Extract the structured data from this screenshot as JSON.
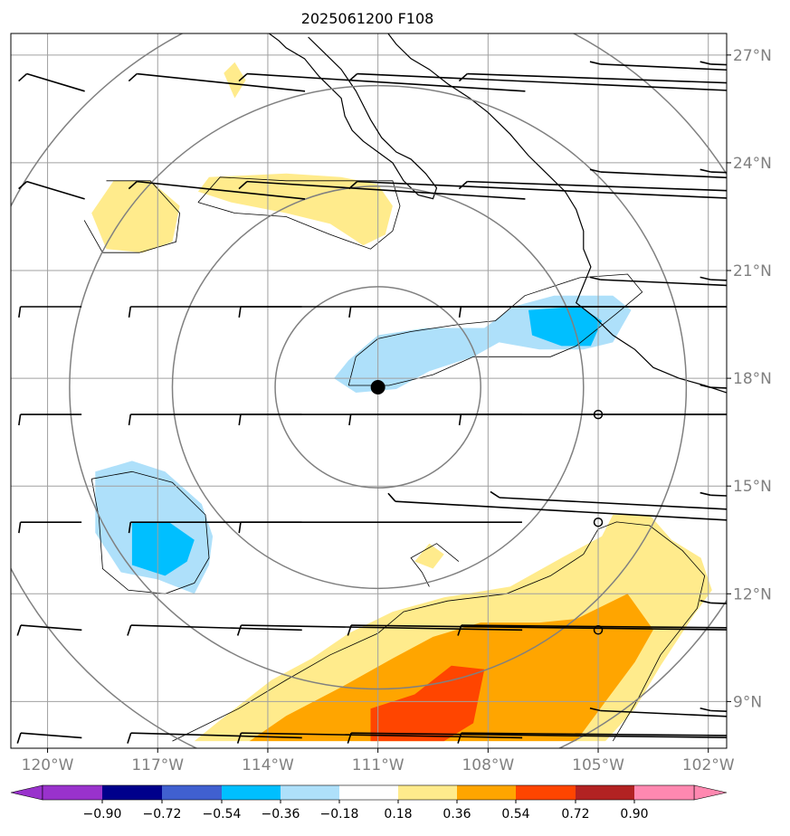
{
  "chart_data": {
    "type": "heatmap",
    "title": "2025061200 F108",
    "projection": "geographic map with lat/lon grid, coastlines, wind barbs",
    "lon_range": [
      -121,
      -101.5
    ],
    "lat_range": [
      7.7,
      27.6
    ],
    "lat_ticks": [
      {
        "value": 27,
        "label": "27°N"
      },
      {
        "value": 24,
        "label": "24°N"
      },
      {
        "value": 21,
        "label": "21°N"
      },
      {
        "value": 18,
        "label": "18°N"
      },
      {
        "value": 15,
        "label": "15°N"
      },
      {
        "value": 12,
        "label": "12°N"
      },
      {
        "value": 9,
        "label": "9°N"
      }
    ],
    "lon_ticks": [
      {
        "value": -120,
        "label": "120°W"
      },
      {
        "value": -117,
        "label": "117°W"
      },
      {
        "value": -114,
        "label": "114°W"
      },
      {
        "value": -111,
        "label": "111°W"
      },
      {
        "value": -108,
        "label": "108°W"
      },
      {
        "value": -105,
        "label": "105°W"
      },
      {
        "value": -102,
        "label": "102°W"
      }
    ],
    "grid": true,
    "center_marker": {
      "lon": -111.0,
      "lat": 17.75
    },
    "range_rings_deg": [
      2.8,
      5.6,
      8.4,
      11.2
    ],
    "colorbar": {
      "position": "bottom",
      "extend": "both",
      "tick_labels": [
        "−0.90",
        "−0.72",
        "−0.54",
        "−0.36",
        "−0.18",
        "0.18",
        "0.36",
        "0.54",
        "0.72",
        "0.90"
      ],
      "levels": [
        -0.9,
        -0.72,
        -0.54,
        -0.36,
        -0.18,
        0.18,
        0.36,
        0.54,
        0.72,
        0.9
      ],
      "colors": [
        "#9932cc",
        "#00008b",
        "#4060d0",
        "#00bfff",
        "#aee0fa",
        "#ffffff",
        "#ffeb8c",
        "#ffa500",
        "#ff4500",
        "#b22222",
        "#ff88b0"
      ]
    },
    "filled_regions": [
      {
        "level": 0.18,
        "color": "#ffeb8c",
        "polygon": [
          [
            -118.2,
            23.5
          ],
          [
            -117.2,
            23.5
          ],
          [
            -116.4,
            22.8
          ],
          [
            -116.6,
            21.8
          ],
          [
            -117.4,
            21.5
          ],
          [
            -118.4,
            21.6
          ],
          [
            -118.8,
            22.6
          ]
        ]
      },
      {
        "level": 0.18,
        "color": "#ffeb8c",
        "polygon": [
          [
            -115.6,
            23.6
          ],
          [
            -113.5,
            23.7
          ],
          [
            -112,
            23.6
          ],
          [
            -111,
            23.4
          ],
          [
            -110.6,
            22.8
          ],
          [
            -110.8,
            22.0
          ],
          [
            -111.4,
            21.7
          ],
          [
            -112.3,
            22.3
          ],
          [
            -113.5,
            22.6
          ],
          [
            -115,
            22.9
          ],
          [
            -115.9,
            23.2
          ]
        ]
      },
      {
        "level": 0.18,
        "color": "#ffeb8c",
        "polygon": [
          [
            -115.2,
            26.5
          ],
          [
            -114.9,
            25.8
          ],
          [
            -114.6,
            26.3
          ],
          [
            -114.9,
            26.8
          ]
        ]
      },
      {
        "level": 0.18,
        "color": "#ffeb8c",
        "polygon": [
          [
            -109.6,
            13.4
          ],
          [
            -109.2,
            13.1
          ],
          [
            -109.5,
            12.7
          ],
          [
            -110.0,
            12.9
          ]
        ]
      },
      {
        "level": 0.18,
        "color": "#ffeb8c",
        "polygon": [
          [
            -116.0,
            7.9
          ],
          [
            -115.4,
            8.4
          ],
          [
            -113.9,
            9.6
          ],
          [
            -112.8,
            10.2
          ],
          [
            -111.8,
            10.9
          ],
          [
            -110.6,
            11.5
          ],
          [
            -109.2,
            11.9
          ],
          [
            -107.4,
            12.2
          ],
          [
            -106.0,
            13.0
          ],
          [
            -104.9,
            13.6
          ],
          [
            -104.6,
            14.2
          ],
          [
            -103.6,
            14.2
          ],
          [
            -103.0,
            13.5
          ],
          [
            -102.2,
            13.0
          ],
          [
            -101.9,
            12.1
          ],
          [
            -102.4,
            11.4
          ],
          [
            -103.3,
            10.0
          ],
          [
            -104.0,
            8.8
          ],
          [
            -104.8,
            7.9
          ]
        ]
      },
      {
        "level": 0.36,
        "color": "#ffa500",
        "polygon": [
          [
            -114.5,
            7.9
          ],
          [
            -113.5,
            8.6
          ],
          [
            -112.0,
            9.4
          ],
          [
            -110.6,
            10.2
          ],
          [
            -109.5,
            10.8
          ],
          [
            -108.2,
            11.2
          ],
          [
            -106.6,
            11.2
          ],
          [
            -105.6,
            11.3
          ],
          [
            -104.2,
            12.0
          ],
          [
            -103.5,
            11.0
          ],
          [
            -104.0,
            10.1
          ],
          [
            -104.8,
            9.0
          ],
          [
            -105.6,
            7.9
          ]
        ]
      },
      {
        "level": 0.54,
        "color": "#ff4500",
        "polygon": [
          [
            -111.2,
            7.9
          ],
          [
            -111.2,
            8.8
          ],
          [
            -110.0,
            9.2
          ],
          [
            -109.0,
            10.0
          ],
          [
            -108.1,
            9.9
          ],
          [
            -108.4,
            8.4
          ],
          [
            -109.2,
            7.9
          ]
        ]
      },
      {
        "level": -0.18,
        "color": "#aee0fa",
        "polygon": [
          [
            -111.8,
            18.5
          ],
          [
            -111.0,
            19.2
          ],
          [
            -109.7,
            19.4
          ],
          [
            -108.1,
            19.4
          ],
          [
            -107.3,
            20.0
          ],
          [
            -106.2,
            20.3
          ],
          [
            -104.6,
            20.3
          ],
          [
            -104.1,
            19.9
          ],
          [
            -104.6,
            19.0
          ],
          [
            -105.4,
            18.8
          ],
          [
            -106.6,
            18.8
          ],
          [
            -107.7,
            19.0
          ],
          [
            -108.4,
            18.6
          ],
          [
            -109.6,
            18.2
          ],
          [
            -110.5,
            17.7
          ],
          [
            -111.6,
            17.6
          ],
          [
            -112.2,
            18.0
          ]
        ]
      },
      {
        "level": -0.36,
        "color": "#00bfff",
        "polygon": [
          [
            -106.9,
            19.9
          ],
          [
            -105.5,
            20.0
          ],
          [
            -104.9,
            19.6
          ],
          [
            -105.2,
            18.9
          ],
          [
            -106.0,
            18.9
          ],
          [
            -106.8,
            19.2
          ]
        ]
      },
      {
        "level": -0.18,
        "color": "#aee0fa",
        "polygon": [
          [
            -118.7,
            15.4
          ],
          [
            -117.7,
            15.7
          ],
          [
            -116.8,
            15.4
          ],
          [
            -115.8,
            14.5
          ],
          [
            -115.5,
            13.6
          ],
          [
            -115.6,
            12.8
          ],
          [
            -116.0,
            12.0
          ],
          [
            -117.0,
            12.4
          ],
          [
            -118.0,
            12.6
          ],
          [
            -118.7,
            13.7
          ]
        ]
      },
      {
        "level": -0.36,
        "color": "#00bfff",
        "polygon": [
          [
            -117.7,
            14.0
          ],
          [
            -116.7,
            14.0
          ],
          [
            -116.0,
            13.5
          ],
          [
            -116.2,
            12.9
          ],
          [
            -116.8,
            12.5
          ],
          [
            -117.7,
            12.8
          ]
        ]
      }
    ],
    "contour_lines": [
      [
        [
          -118.4,
          23.5
        ],
        [
          -117.2,
          23.5
        ],
        [
          -116.4,
          22.6
        ],
        [
          -116.5,
          21.8
        ],
        [
          -117.5,
          21.5
        ],
        [
          -118.5,
          21.5
        ],
        [
          -119.0,
          22.4
        ]
      ],
      [
        [
          -115.9,
          22.9
        ],
        [
          -114.9,
          22.6
        ],
        [
          -113.5,
          22.5
        ],
        [
          -112.3,
          22.0
        ],
        [
          -111.2,
          21.6
        ],
        [
          -110.6,
          22.1
        ],
        [
          -110.4,
          22.8
        ],
        [
          -110.6,
          23.5
        ],
        [
          -112.0,
          23.5
        ],
        [
          -113.5,
          23.5
        ],
        [
          -115.3,
          23.6
        ],
        [
          -115.9,
          22.9
        ]
      ],
      [
        [
          -109.6,
          12.2
        ],
        [
          -109.8,
          12.6
        ],
        [
          -110.1,
          13.0
        ],
        [
          -109.4,
          13.4
        ],
        [
          -108.8,
          12.9
        ]
      ],
      [
        [
          -111.8,
          17.8
        ],
        [
          -111.6,
          18.6
        ],
        [
          -111.0,
          19.1
        ],
        [
          -110.1,
          19.3
        ],
        [
          -108.8,
          19.5
        ],
        [
          -107.8,
          19.6
        ],
        [
          -107.0,
          20.3
        ],
        [
          -105.5,
          20.8
        ],
        [
          -104.2,
          20.9
        ],
        [
          -103.8,
          20.4
        ],
        [
          -104.5,
          19.8
        ],
        [
          -105.6,
          18.9
        ],
        [
          -106.3,
          18.6
        ],
        [
          -107.5,
          18.6
        ],
        [
          -108.4,
          18.6
        ],
        [
          -109.5,
          18.1
        ],
        [
          -110.7,
          17.8
        ],
        [
          -111.8,
          17.8
        ]
      ],
      [
        [
          -118.8,
          15.2
        ],
        [
          -117.7,
          15.4
        ],
        [
          -116.6,
          15.1
        ],
        [
          -115.7,
          14.2
        ],
        [
          -115.6,
          13.0
        ],
        [
          -116.0,
          12.3
        ],
        [
          -116.8,
          12.0
        ],
        [
          -117.8,
          12.1
        ],
        [
          -118.5,
          12.7
        ],
        [
          -118.6,
          14.1
        ],
        [
          -118.8,
          15.2
        ]
      ],
      [
        [
          -116.6,
          7.9
        ],
        [
          -114.8,
          8.8
        ],
        [
          -113.5,
          9.6
        ],
        [
          -112.3,
          10.3
        ],
        [
          -111.0,
          10.9
        ],
        [
          -110.3,
          11.5
        ],
        [
          -109.1,
          11.8
        ],
        [
          -107.5,
          12.0
        ],
        [
          -106.3,
          12.5
        ],
        [
          -105.4,
          13.1
        ],
        [
          -105.0,
          13.8
        ],
        [
          -104.5,
          14.0
        ],
        [
          -103.6,
          13.9
        ],
        [
          -102.7,
          13.2
        ],
        [
          -102.1,
          12.5
        ],
        [
          -102.3,
          11.6
        ],
        [
          -103.3,
          10.3
        ],
        [
          -103.9,
          9.1
        ],
        [
          -104.6,
          7.9
        ]
      ]
    ],
    "coastline": [
      [
        [
          -114.1,
          27.7
        ],
        [
          -113.7,
          27.4
        ],
        [
          -113.5,
          27.2
        ],
        [
          -113.0,
          26.9
        ],
        [
          -112.6,
          26.4
        ],
        [
          -112.0,
          25.8
        ],
        [
          -111.9,
          25.3
        ],
        [
          -111.7,
          24.9
        ],
        [
          -111.4,
          24.6
        ],
        [
          -111.0,
          24.3
        ],
        [
          -110.6,
          24.0
        ],
        [
          -110.3,
          23.5
        ],
        [
          -109.9,
          23.1
        ],
        [
          -109.5,
          23.0
        ],
        [
          -109.4,
          23.3
        ],
        [
          -109.7,
          23.7
        ],
        [
          -110.1,
          24.1
        ],
        [
          -110.5,
          24.3
        ],
        [
          -110.9,
          24.7
        ],
        [
          -111.2,
          25.2
        ],
        [
          -111.4,
          25.6
        ],
        [
          -111.6,
          26.0
        ],
        [
          -112.0,
          26.6
        ],
        [
          -112.5,
          27.1
        ],
        [
          -112.9,
          27.5
        ]
      ],
      [
        [
          -110.8,
          27.7
        ],
        [
          -110.5,
          27.3
        ],
        [
          -110.1,
          26.9
        ],
        [
          -109.6,
          26.6
        ],
        [
          -109.1,
          26.2
        ],
        [
          -108.5,
          25.8
        ],
        [
          -108.0,
          25.4
        ],
        [
          -107.4,
          24.8
        ],
        [
          -106.9,
          24.2
        ],
        [
          -106.4,
          23.7
        ],
        [
          -105.9,
          23.2
        ],
        [
          -105.6,
          22.7
        ],
        [
          -105.4,
          22.1
        ],
        [
          -105.4,
          21.6
        ],
        [
          -105.2,
          21.1
        ],
        [
          -105.4,
          20.6
        ],
        [
          -105.6,
          20.1
        ],
        [
          -105.1,
          19.7
        ],
        [
          -104.6,
          19.2
        ],
        [
          -104.0,
          18.8
        ],
        [
          -103.5,
          18.3
        ],
        [
          -102.8,
          18.0
        ],
        [
          -102.1,
          17.8
        ],
        [
          -101.5,
          17.6
        ]
      ]
    ],
    "wind_barbs": "grid of barbs every 3 degrees"
  }
}
